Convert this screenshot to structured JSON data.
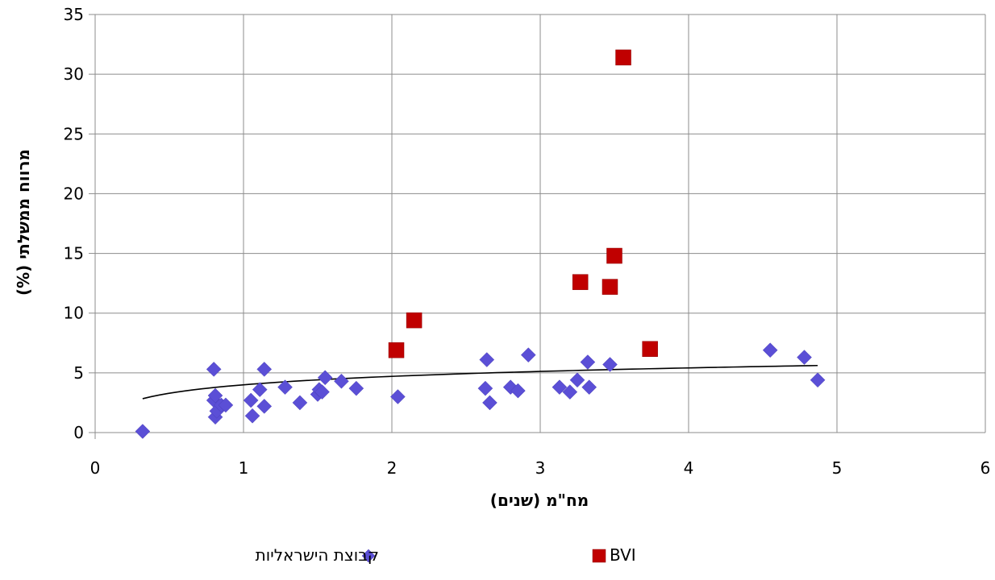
{
  "chart_data": {
    "type": "scatter",
    "title": "",
    "xlabel": "מח\"מ (שנים)",
    "ylabel": "מרווח ממשלתי (%)",
    "xlim": [
      0,
      6
    ],
    "ylim": [
      0,
      35
    ],
    "xticks": [
      "0",
      "1",
      "2",
      "3",
      "4",
      "5",
      "6"
    ],
    "yticks": [
      "0",
      "5",
      "10",
      "15",
      "20",
      "25",
      "30",
      "35"
    ],
    "grid": true,
    "legend_position": "bottom",
    "series": [
      {
        "name": "קבוצת הישראליות",
        "marker": "diamond",
        "color": "#5B4FD6",
        "points": [
          [
            0.32,
            0.1
          ],
          [
            0.8,
            5.3
          ],
          [
            0.8,
            2.7
          ],
          [
            0.81,
            3.1
          ],
          [
            0.81,
            1.3
          ],
          [
            0.82,
            1.8
          ],
          [
            0.85,
            2.3
          ],
          [
            0.88,
            2.3
          ],
          [
            1.05,
            2.7
          ],
          [
            1.06,
            1.4
          ],
          [
            1.11,
            3.6
          ],
          [
            1.14,
            2.2
          ],
          [
            1.14,
            5.3
          ],
          [
            1.28,
            3.8
          ],
          [
            1.38,
            2.5
          ],
          [
            1.5,
            3.2
          ],
          [
            1.51,
            3.6
          ],
          [
            1.53,
            3.4
          ],
          [
            1.55,
            4.6
          ],
          [
            1.66,
            4.3
          ],
          [
            1.76,
            3.7
          ],
          [
            2.04,
            3.0
          ],
          [
            2.63,
            3.7
          ],
          [
            2.64,
            6.1
          ],
          [
            2.66,
            2.5
          ],
          [
            2.8,
            3.8
          ],
          [
            2.85,
            3.5
          ],
          [
            2.92,
            6.5
          ],
          [
            3.13,
            3.8
          ],
          [
            3.2,
            3.4
          ],
          [
            3.25,
            4.4
          ],
          [
            3.32,
            5.9
          ],
          [
            3.33,
            3.8
          ],
          [
            3.47,
            5.7
          ],
          [
            4.55,
            6.9
          ],
          [
            4.78,
            6.3
          ],
          [
            4.87,
            4.4
          ]
        ],
        "trendline": {
          "type": "logarithmic",
          "a": 4.0,
          "b": 1.02,
          "x_range": [
            0.32,
            4.87
          ],
          "color": "#000000"
        }
      },
      {
        "name": "BVI",
        "marker": "square",
        "color": "#C00000",
        "points": [
          [
            2.03,
            6.9
          ],
          [
            2.15,
            9.4
          ],
          [
            3.27,
            12.6
          ],
          [
            3.47,
            12.2
          ],
          [
            3.5,
            14.8
          ],
          [
            3.56,
            31.4
          ],
          [
            3.74,
            7.0
          ]
        ]
      }
    ]
  }
}
